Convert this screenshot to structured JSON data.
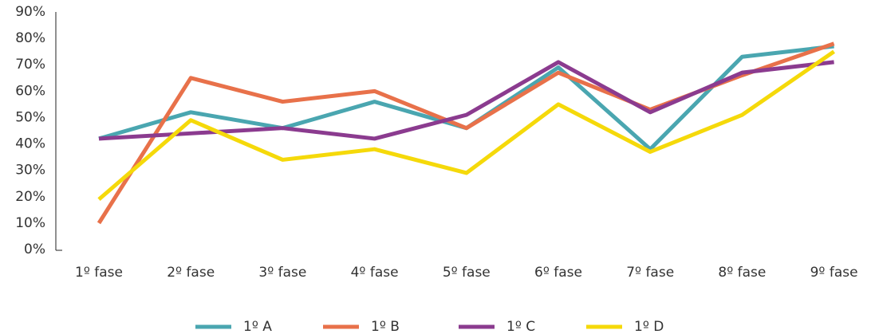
{
  "chart_data": {
    "type": "line",
    "categories": [
      "1º fase",
      "2º fase",
      "3º fase",
      "4º fase",
      "5º fase",
      "6º fase",
      "7º fase",
      "8º fase",
      "9º fase"
    ],
    "series": [
      {
        "name": "1º A",
        "color": "#4aa6b0",
        "values": [
          42,
          52,
          46,
          56,
          46,
          69,
          38,
          73,
          77
        ]
      },
      {
        "name": "1º B",
        "color": "#e8714a",
        "values": [
          10,
          65,
          56,
          60,
          46,
          67,
          53,
          66,
          78
        ]
      },
      {
        "name": "1º C",
        "color": "#8b3b8f",
        "values": [
          42,
          44,
          46,
          42,
          51,
          71,
          52,
          67,
          71
        ]
      },
      {
        "name": "1º D",
        "color": "#f5d90a",
        "values": [
          19,
          49,
          34,
          38,
          29,
          55,
          37,
          51,
          75
        ]
      }
    ],
    "ylim": [
      0,
      90
    ],
    "yticks": [
      {
        "value": 0,
        "label": "0%"
      },
      {
        "value": 10,
        "label": "10%"
      },
      {
        "value": 20,
        "label": "20%"
      },
      {
        "value": 30,
        "label": "30%"
      },
      {
        "value": 40,
        "label": "40%"
      },
      {
        "value": 50,
        "label": "50%"
      },
      {
        "value": 60,
        "label": "60%"
      },
      {
        "value": 70,
        "label": "70%"
      },
      {
        "value": 80,
        "label": "80%"
      },
      {
        "value": 90,
        "label": "90%"
      }
    ],
    "legend": "bottom"
  }
}
